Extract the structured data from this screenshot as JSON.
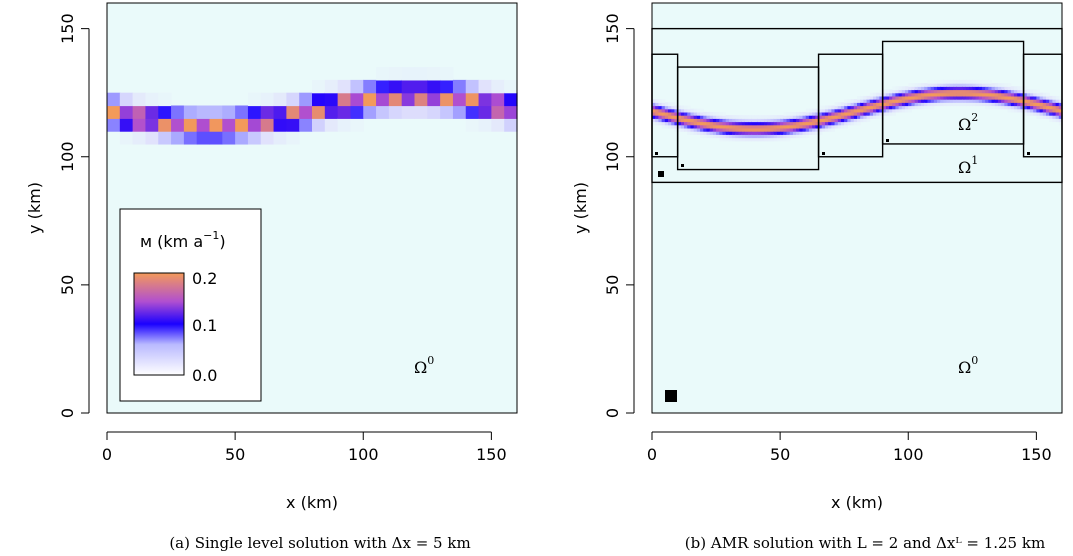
{
  "chart_data": [
    {
      "type": "heatmap",
      "id": "panel-a",
      "title": "",
      "caption": "(a) Single level solution with Δx = 5 km",
      "xlabel": "x (km)",
      "ylabel": "y (km)",
      "xlim": [
        0,
        160
      ],
      "ylim": [
        0,
        160
      ],
      "x_ticks": [
        0,
        50,
        100,
        150
      ],
      "y_ticks": [
        0,
        50,
        100,
        150
      ],
      "x_tick_labels": [
        "0",
        "50",
        "100",
        "150"
      ],
      "y_tick_labels": [
        "0",
        "50",
        "100",
        "150"
      ],
      "grid_dx_km": 5,
      "background_value": 0.0,
      "band": {
        "description_values": "Ridge of high values following y = 118 + 6 sin(2π(x-80)/160)",
        "peak_value": 0.2,
        "center_y_mean": 118,
        "amplitude": 6,
        "half_width_km": 3
      },
      "legend": {
        "title": "м (km a⁻¹)",
        "title_main": "м (km a",
        "title_sup": "−1",
        "title_close": ")",
        "labels": [
          "0.2",
          "0.1",
          "0.0"
        ],
        "placement": "left-center"
      },
      "annotations": [
        {
          "text": "Ω",
          "sup": "0"
        }
      ]
    },
    {
      "type": "heatmap",
      "id": "panel-b",
      "title": "",
      "caption": "(b) AMR solution with L = 2 and Δxᴸ = 1.25 km",
      "xlabel": "x (km)",
      "ylabel": "y (km)",
      "xlim": [
        0,
        160
      ],
      "ylim": [
        0,
        160
      ],
      "x_ticks": [
        0,
        50,
        100,
        150
      ],
      "y_ticks": [
        0,
        50,
        100,
        150
      ],
      "x_tick_labels": [
        "0",
        "50",
        "100",
        "150"
      ],
      "y_tick_labels": [
        "0",
        "50",
        "100",
        "150"
      ],
      "grid_dx_km": 1.25,
      "background_value": 0.0,
      "band": {
        "peak_value": 0.2,
        "center_y_mean": 118,
        "amplitude": 7,
        "half_width_km": 2
      },
      "level_boundaries": [
        {
          "level": 1,
          "x0": 0,
          "x1": 160,
          "y0": 90,
          "y1": 150
        },
        {
          "level": 2,
          "x0": 0,
          "x1": 10,
          "y0": 100,
          "y1": 140
        },
        {
          "level": 2,
          "x0": 10,
          "x1": 65,
          "y0": 95,
          "y1": 135
        },
        {
          "level": 2,
          "x0": 65,
          "x1": 90,
          "y0": 100,
          "y1": 140
        },
        {
          "level": 2,
          "x0": 90,
          "x1": 145,
          "y0": 105,
          "y1": 145
        },
        {
          "level": 2,
          "x0": 145,
          "x1": 160,
          "y0": 100,
          "y1": 140
        }
      ],
      "annotations": [
        {
          "text": "Ω",
          "sup": "2"
        },
        {
          "text": "Ω",
          "sup": "1"
        },
        {
          "text": "Ω",
          "sup": "0"
        }
      ]
    }
  ]
}
